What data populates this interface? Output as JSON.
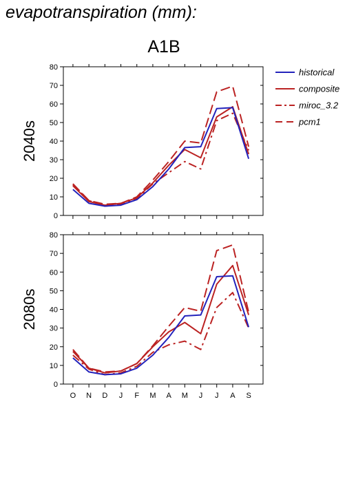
{
  "header": {
    "title": "evapotranspiration (mm):",
    "scenario": "A1B"
  },
  "colors": {
    "historical": "#2222bb",
    "future": "#bb2222",
    "axis": "#000000"
  },
  "legend": [
    {
      "name": "historical",
      "color": "#2222bb",
      "style": "solid"
    },
    {
      "name": "composite",
      "color": "#bb2222",
      "style": "solid"
    },
    {
      "name": "miroc_3.2",
      "color": "#bb2222",
      "style": "dashdot"
    },
    {
      "name": "pcm1",
      "color": "#bb2222",
      "style": "dashed"
    }
  ],
  "chart_data": [
    {
      "type": "line",
      "panel": "2040s",
      "categories": [
        "O",
        "N",
        "D",
        "J",
        "F",
        "M",
        "A",
        "M",
        "J",
        "J",
        "A",
        "S"
      ],
      "ylim": [
        0,
        80
      ],
      "yticks": [
        0,
        10,
        20,
        30,
        40,
        50,
        60,
        70,
        80
      ],
      "series": [
        {
          "name": "historical",
          "values": [
            14,
            6.5,
            5,
            5.5,
            8.5,
            15.5,
            25,
            36.5,
            37,
            57.5,
            58,
            30.5
          ]
        },
        {
          "name": "composite",
          "values": [
            16,
            7.5,
            5.5,
            6.5,
            9.5,
            17.5,
            27,
            35.5,
            31,
            53,
            58.5,
            33
          ]
        },
        {
          "name": "miroc_3.2",
          "values": [
            16.5,
            8,
            5,
            6,
            9,
            17,
            23,
            29,
            25,
            51,
            55,
            35
          ]
        },
        {
          "name": "pcm1",
          "values": [
            17,
            8,
            6,
            6.5,
            10,
            19,
            29,
            40,
            39,
            66.5,
            69.5,
            37
          ]
        }
      ]
    },
    {
      "type": "line",
      "panel": "2080s",
      "categories": [
        "O",
        "N",
        "D",
        "J",
        "F",
        "M",
        "A",
        "M",
        "J",
        "J",
        "A",
        "S"
      ],
      "ylim": [
        0,
        80
      ],
      "yticks": [
        0,
        10,
        20,
        30,
        40,
        50,
        60,
        70,
        80
      ],
      "series": [
        {
          "name": "historical",
          "values": [
            14,
            6.5,
            5,
            5.5,
            8.5,
            15.5,
            25,
            36.5,
            37,
            57.5,
            58,
            30.5
          ]
        },
        {
          "name": "composite",
          "values": [
            17.5,
            8.5,
            6,
            7,
            11,
            20,
            28,
            33,
            27,
            53.5,
            63.5,
            37
          ]
        },
        {
          "name": "miroc_3.2",
          "values": [
            15.5,
            8,
            5,
            6,
            9.5,
            17,
            21,
            23,
            18.5,
            41,
            49,
            30
          ]
        },
        {
          "name": "pcm1",
          "values": [
            18.5,
            8.5,
            6.5,
            7,
            11,
            20.5,
            31,
            41,
            39,
            71.5,
            74.5,
            38.5
          ]
        }
      ]
    }
  ]
}
